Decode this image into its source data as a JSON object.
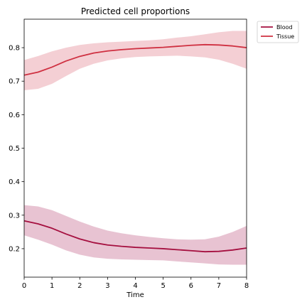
{
  "chart_data": {
    "type": "line",
    "title": "Predicted cell proportions",
    "xlabel": "Time",
    "ylabel": "",
    "xlim": [
      0,
      8
    ],
    "ylim": [
      0.115,
      0.885
    ],
    "x_ticks": [
      0,
      1,
      2,
      3,
      4,
      5,
      6,
      7,
      8
    ],
    "x_tick_labels": [
      "0",
      "1",
      "2",
      "3",
      "4",
      "5",
      "6",
      "7",
      "8"
    ],
    "y_ticks": [
      0.2,
      0.3,
      0.4,
      0.5,
      0.6,
      0.7,
      0.8
    ],
    "y_tick_labels": [
      "0.2",
      "0.3",
      "0.4",
      "0.5",
      "0.6",
      "0.7",
      "0.8"
    ],
    "grid": false,
    "legend_position": "outside-top-right",
    "x": [
      0,
      0.5,
      1,
      1.5,
      2,
      2.5,
      3,
      3.5,
      4,
      4.5,
      5,
      5.5,
      6,
      6.5,
      7,
      7.5,
      8
    ],
    "series": [
      {
        "name": "Blood",
        "color": "#a50f3f",
        "band_color": "#e4b8ca",
        "values": [
          0.283,
          0.274,
          0.261,
          0.244,
          0.229,
          0.218,
          0.211,
          0.207,
          0.204,
          0.202,
          0.2,
          0.197,
          0.194,
          0.191,
          0.192,
          0.196,
          0.202
        ],
        "upper": [
          0.33,
          0.326,
          0.315,
          0.298,
          0.281,
          0.266,
          0.254,
          0.246,
          0.24,
          0.235,
          0.231,
          0.228,
          0.227,
          0.228,
          0.236,
          0.25,
          0.268
        ],
        "lower": [
          0.24,
          0.227,
          0.212,
          0.195,
          0.182,
          0.174,
          0.17,
          0.168,
          0.167,
          0.166,
          0.165,
          0.162,
          0.159,
          0.156,
          0.153,
          0.152,
          0.152
        ]
      },
      {
        "name": "Tissue",
        "color": "#cf3041",
        "band_color": "#f2c7cd",
        "values": [
          0.718,
          0.727,
          0.742,
          0.76,
          0.774,
          0.784,
          0.79,
          0.794,
          0.797,
          0.799,
          0.801,
          0.804,
          0.807,
          0.809,
          0.808,
          0.805,
          0.8
        ],
        "upper": [
          0.763,
          0.775,
          0.789,
          0.8,
          0.808,
          0.813,
          0.816,
          0.818,
          0.82,
          0.822,
          0.825,
          0.83,
          0.834,
          0.84,
          0.846,
          0.85,
          0.85
        ],
        "lower": [
          0.673,
          0.677,
          0.692,
          0.715,
          0.737,
          0.752,
          0.762,
          0.768,
          0.772,
          0.774,
          0.775,
          0.776,
          0.774,
          0.771,
          0.764,
          0.752,
          0.737
        ]
      }
    ]
  }
}
